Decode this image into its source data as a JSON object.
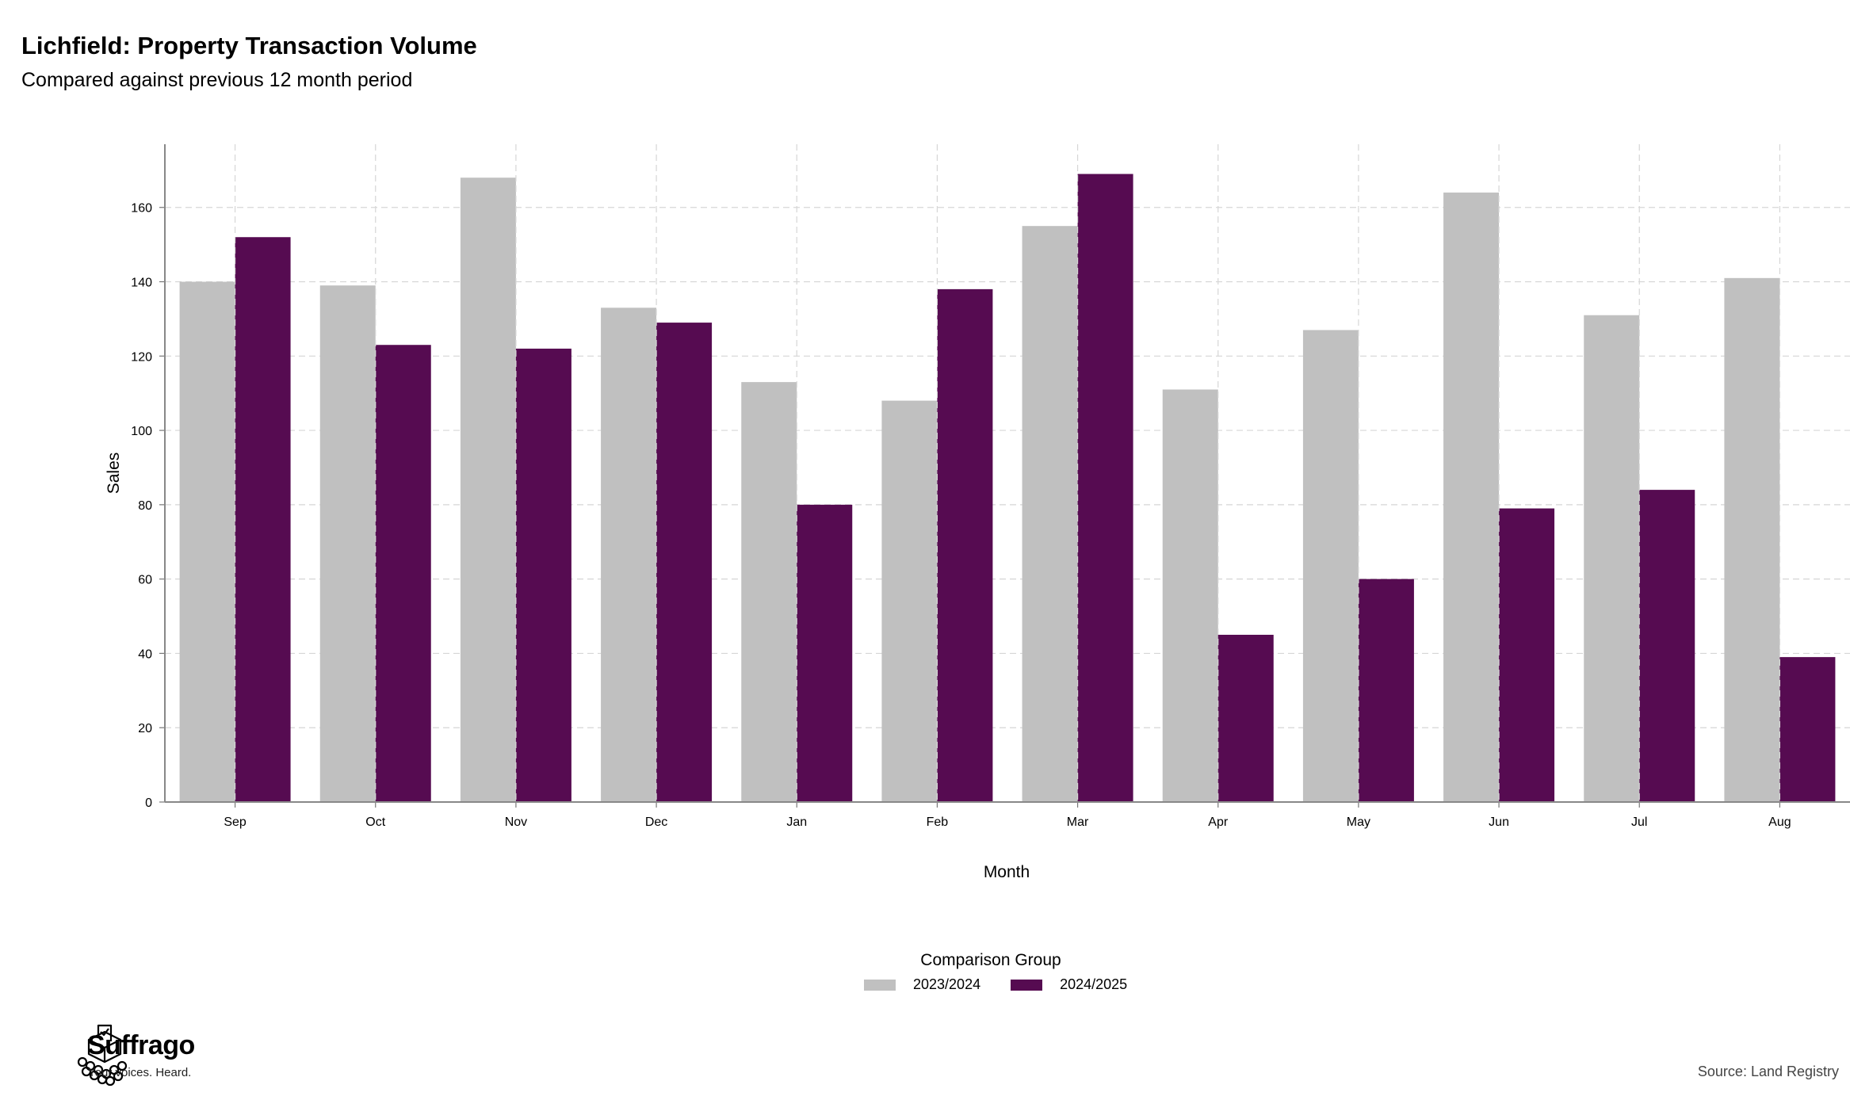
{
  "title": "Lichfield: Property Transaction Volume",
  "subtitle": "Compared against previous 12 month period",
  "source": "Source: Land Registry",
  "brand": {
    "name": "Suffrago",
    "tagline": "Your voices. Heard."
  },
  "legend": {
    "title": "Comparison Group",
    "items": [
      {
        "label": "2023/2024",
        "color": "#c0c0c0"
      },
      {
        "label": "2024/2025",
        "color": "#560b51"
      }
    ]
  },
  "chart_data": {
    "type": "bar",
    "xlabel": "Month",
    "ylabel": "Sales",
    "categories": [
      "Sep",
      "Oct",
      "Nov",
      "Dec",
      "Jan",
      "Feb",
      "Mar",
      "Apr",
      "May",
      "Jun",
      "Jul",
      "Aug"
    ],
    "series": [
      {
        "name": "2023/2024",
        "color": "#c0c0c0",
        "values": [
          140,
          139,
          168,
          133,
          113,
          108,
          155,
          111,
          127,
          164,
          131,
          141
        ]
      },
      {
        "name": "2024/2025",
        "color": "#560b51",
        "values": [
          152,
          123,
          122,
          129,
          80,
          138,
          169,
          45,
          60,
          79,
          84,
          39
        ]
      }
    ],
    "ylim": [
      0,
      177
    ],
    "yticks": [
      0,
      20,
      40,
      60,
      80,
      100,
      120,
      140,
      160
    ],
    "grid": true,
    "legend_position": "bottom"
  }
}
